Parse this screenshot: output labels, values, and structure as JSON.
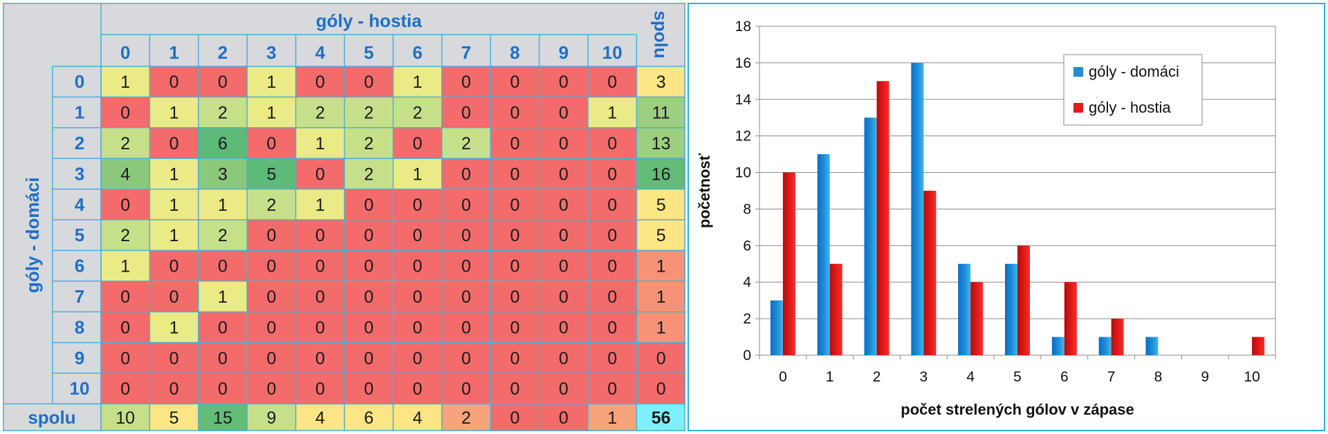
{
  "table": {
    "col_header_title": "góly - hostia",
    "row_header_title": "góly - domáci",
    "total_label": "spolu",
    "col_labels": [
      "0",
      "1",
      "2",
      "3",
      "4",
      "5",
      "6",
      "7",
      "8",
      "9",
      "10"
    ],
    "row_labels": [
      "0",
      "1",
      "2",
      "3",
      "4",
      "5",
      "6",
      "7",
      "8",
      "9",
      "10"
    ],
    "cells": [
      [
        1,
        0,
        0,
        1,
        0,
        0,
        1,
        0,
        0,
        0,
        0
      ],
      [
        0,
        1,
        2,
        1,
        2,
        2,
        2,
        0,
        0,
        0,
        1
      ],
      [
        2,
        0,
        6,
        0,
        1,
        2,
        0,
        2,
        0,
        0,
        0
      ],
      [
        4,
        1,
        3,
        5,
        0,
        2,
        1,
        0,
        0,
        0,
        0
      ],
      [
        0,
        1,
        1,
        2,
        1,
        0,
        0,
        0,
        0,
        0,
        0
      ],
      [
        2,
        1,
        2,
        0,
        0,
        0,
        0,
        0,
        0,
        0,
        0
      ],
      [
        1,
        0,
        0,
        0,
        0,
        0,
        0,
        0,
        0,
        0,
        0
      ],
      [
        0,
        0,
        1,
        0,
        0,
        0,
        0,
        0,
        0,
        0,
        0
      ],
      [
        0,
        1,
        0,
        0,
        0,
        0,
        0,
        0,
        0,
        0,
        0
      ],
      [
        0,
        0,
        0,
        0,
        0,
        0,
        0,
        0,
        0,
        0,
        0
      ],
      [
        0,
        0,
        0,
        0,
        0,
        0,
        0,
        0,
        0,
        0,
        0
      ]
    ],
    "row_totals": [
      3,
      11,
      13,
      16,
      5,
      5,
      1,
      1,
      1,
      0,
      0
    ],
    "col_totals": [
      10,
      5,
      15,
      9,
      4,
      6,
      4,
      2,
      0,
      0,
      1
    ],
    "grand_total": 56,
    "colors": {
      "zero": "#f46b6b",
      "one": "#eaea86",
      "two": "#c6e08a",
      "mid": "#8cc87c",
      "high": "#5dba78",
      "header_bg": "#d7d9dc",
      "grid": "#4bb0d8",
      "header_text": "#1f6fc6",
      "grand_total_bg": "#7ef0fa"
    }
  },
  "chart_data": {
    "type": "bar",
    "categories": [
      "0",
      "1",
      "2",
      "3",
      "4",
      "5",
      "6",
      "7",
      "8",
      "9",
      "10"
    ],
    "series": [
      {
        "name": "góly - domáci",
        "values": [
          3,
          11,
          13,
          16,
          5,
          5,
          1,
          1,
          1,
          0,
          0
        ],
        "color": "#1e8fd8"
      },
      {
        "name": "góly - hostia",
        "values": [
          10,
          5,
          15,
          9,
          4,
          6,
          4,
          2,
          0,
          0,
          1
        ],
        "color": "#e21a1a"
      }
    ],
    "xlabel": "počet strelených gólov v zápase",
    "ylabel": "početnosť",
    "ylim": [
      0,
      18
    ],
    "yticks": [
      0,
      2,
      4,
      6,
      8,
      10,
      12,
      14,
      16,
      18
    ],
    "grid": true,
    "legend": "top-right",
    "data_labels": false
  }
}
